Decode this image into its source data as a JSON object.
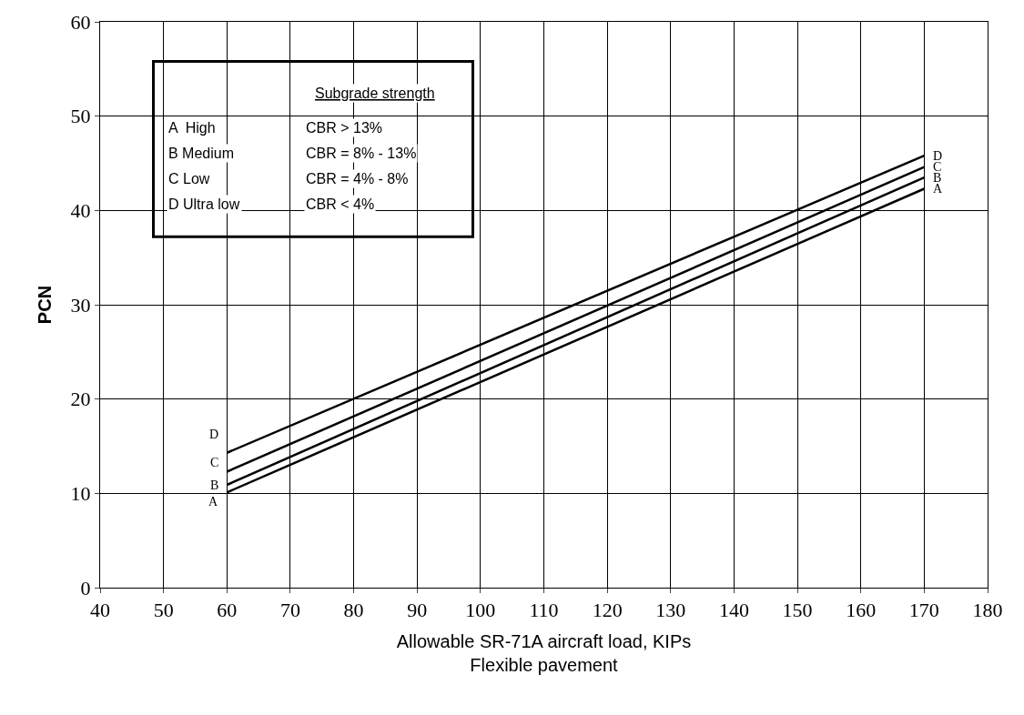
{
  "chart_data": {
    "type": "line",
    "xlabel": "Allowable SR-71A aircraft load, KIPs\nFlexible pavement",
    "ylabel": "PCN",
    "x": [
      60,
      170
    ],
    "series": [
      {
        "name": "D",
        "color": "#000000",
        "values": [
          14.3,
          45.8
        ]
      },
      {
        "name": "C",
        "color": "#000000",
        "values": [
          12.3,
          44.6
        ]
      },
      {
        "name": "B",
        "color": "#000000",
        "values": [
          10.9,
          43.5
        ]
      },
      {
        "name": "A",
        "color": "#000000",
        "values": [
          10.1,
          42.3
        ]
      }
    ],
    "xlim": [
      40,
      180
    ],
    "xticks": [
      40,
      50,
      60,
      70,
      80,
      90,
      100,
      110,
      120,
      130,
      140,
      150,
      160,
      170,
      180
    ],
    "ylim": [
      0,
      60
    ],
    "yticks": [
      0,
      10,
      20,
      30,
      40,
      50,
      60
    ],
    "grid": true,
    "legend": false,
    "marker": "none",
    "line_style": "solid",
    "annotations": [
      "Subgrade strength",
      "A  High",
      "CBR > 13%",
      "B Medium",
      "CBR = 8% - 13%",
      "C Low",
      "CBR = 4% - 8%",
      "D Ultra low",
      "CBR < 4%"
    ]
  }
}
